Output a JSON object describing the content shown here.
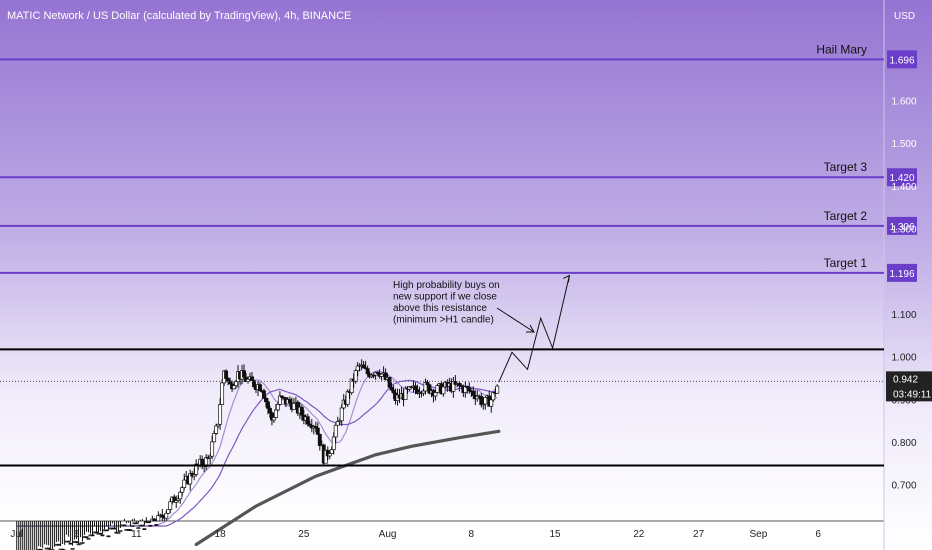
{
  "chart_data": {
    "type": "candlestick",
    "title": "MATIC Network / US Dollar (calculated by TradingView), 4h, BINANCE",
    "currency": "USD",
    "ylim": [
      0.615,
      1.835
    ],
    "y_ticks": [
      0.7,
      0.8,
      0.9,
      1.0,
      1.1,
      1.3,
      1.4,
      1.5,
      1.6
    ],
    "y_tick_labels": [
      "0.700",
      "0.800",
      "0.900",
      "1.000",
      "1.100",
      "1.300",
      "1.400",
      "1.500",
      "1.600"
    ],
    "x_ticks": [
      {
        "label": "Jul",
        "day": 0
      },
      {
        "label": "6",
        "day": 5
      },
      {
        "label": "11",
        "day": 10
      },
      {
        "label": "18",
        "day": 17
      },
      {
        "label": "25",
        "day": 24
      },
      {
        "label": "Aug",
        "day": 31
      },
      {
        "label": "8",
        "day": 38
      },
      {
        "label": "15",
        "day": 45
      },
      {
        "label": "22",
        "day": 52
      },
      {
        "label": "27",
        "day": 57
      },
      {
        "label": "Sep",
        "day": 62
      },
      {
        "label": "6",
        "day": 67
      }
    ],
    "x_range_days": [
      -1.4,
      72.5
    ],
    "target_lines": [
      {
        "label": "Hail Mary",
        "value": 1.696
      },
      {
        "label": "Target 3",
        "value": 1.42
      },
      {
        "label": "Target 2",
        "value": 1.306
      },
      {
        "label": "Target 1",
        "value": 1.196
      }
    ],
    "target_value_labels": [
      "1.696",
      "1.420",
      "1.306",
      "1.196"
    ],
    "black_lines": [
      1.017,
      0.745
    ],
    "current_price": {
      "value": 0.942,
      "label": "0.942",
      "countdown": "03:49:11"
    },
    "annotation": "High probability buys on\nnew support if we close\nabove this resistance\n(minimum >H1 candle)",
    "colors": {
      "background_top": "#9b7fd6",
      "background_bottom": "#ffffff",
      "target_line": "#6a3ec9",
      "black_line": "#000000",
      "candle_up": "#ffffff",
      "candle_down": "#111111",
      "ma_fast": "#a78cd8",
      "ma_mid": "#7e57c2",
      "ma_slow": "#555555",
      "label_box": "#6a3ec9",
      "price_box": "#222222"
    },
    "anchor_path": [
      [
        0,
        0.52
      ],
      [
        6,
        0.57
      ],
      [
        7,
        0.59
      ],
      [
        11,
        0.6
      ],
      [
        12,
        0.62
      ],
      [
        13,
        0.66
      ],
      [
        14,
        0.7
      ],
      [
        15,
        0.74
      ],
      [
        16,
        0.76
      ],
      [
        16.8,
        0.84
      ],
      [
        17.3,
        0.97
      ],
      [
        17.8,
        0.93
      ],
      [
        18.5,
        0.96
      ],
      [
        19.5,
        0.94
      ],
      [
        20.5,
        0.93
      ],
      [
        21.3,
        0.85
      ],
      [
        22,
        0.9
      ],
      [
        23,
        0.89
      ],
      [
        24,
        0.86
      ],
      [
        25,
        0.84
      ],
      [
        25.7,
        0.76
      ],
      [
        26.3,
        0.79
      ],
      [
        27,
        0.86
      ],
      [
        27.8,
        0.92
      ],
      [
        28.6,
        0.98
      ],
      [
        29.3,
        0.96
      ],
      [
        30.2,
        0.97
      ],
      [
        31,
        0.94
      ],
      [
        31.6,
        0.9
      ],
      [
        32.3,
        0.91
      ],
      [
        33,
        0.92
      ],
      [
        34,
        0.93
      ],
      [
        35,
        0.92
      ],
      [
        36,
        0.93
      ],
      [
        37,
        0.93
      ],
      [
        37.8,
        0.92
      ],
      [
        38.5,
        0.91
      ],
      [
        39,
        0.89
      ],
      [
        39.7,
        0.9
      ],
      [
        40.3,
        0.94
      ]
    ],
    "ma_slow_path": [
      [
        15,
        0.56
      ],
      [
        20,
        0.65
      ],
      [
        25,
        0.72
      ],
      [
        27,
        0.74
      ],
      [
        30,
        0.77
      ],
      [
        33,
        0.79
      ],
      [
        37,
        0.81
      ],
      [
        40.3,
        0.825
      ]
    ],
    "projection_path": [
      [
        40.3,
        0.94
      ],
      [
        41.4,
        1.01
      ],
      [
        42.7,
        0.97
      ],
      [
        43.8,
        1.09
      ],
      [
        44.8,
        1.02
      ],
      [
        46.2,
        1.19
      ]
    ]
  }
}
